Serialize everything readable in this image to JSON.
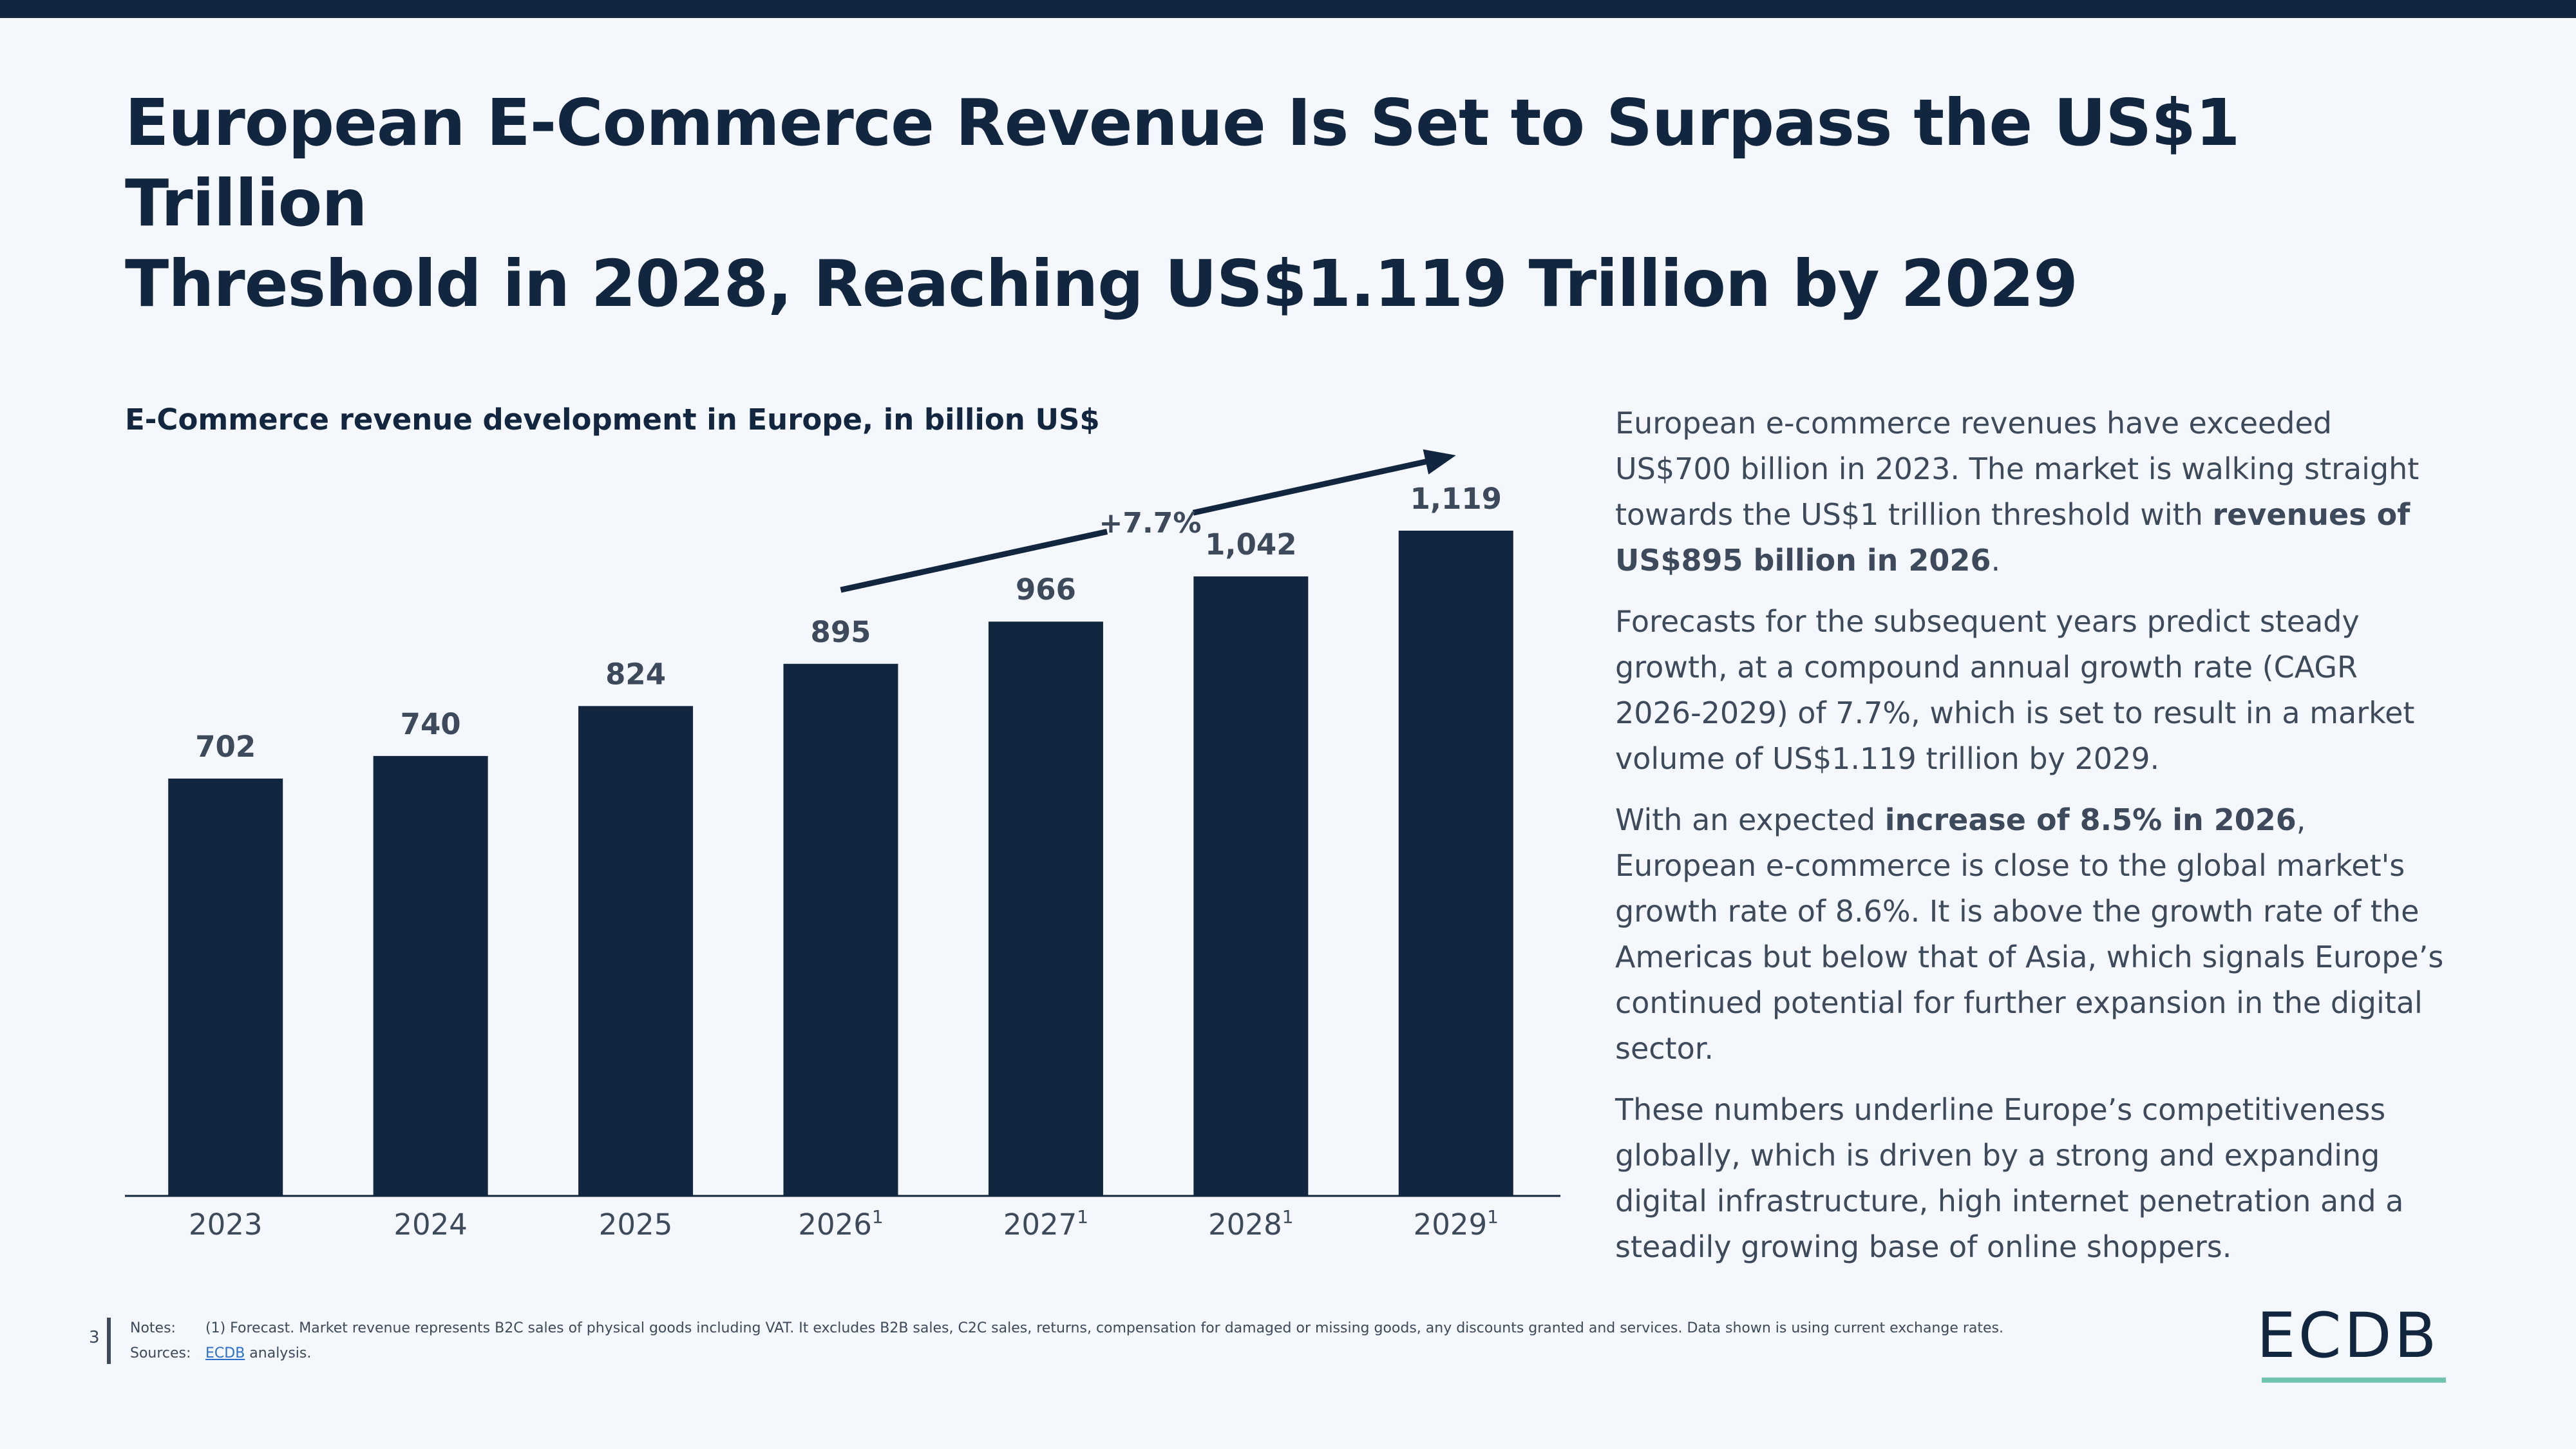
{
  "title_lines": [
    "European E-Commerce Revenue Is Set to Surpass the US$1 Trillion",
    "Threshold in 2028, Reaching US$1.119 Trillion by 2029"
  ],
  "chart_data": {
    "type": "bar",
    "title": "E-Commerce revenue development in Europe, in billion US$",
    "categories": [
      "2023",
      "2024",
      "2025",
      "2026",
      "2027",
      "2028",
      "2029"
    ],
    "category_superscripts": [
      "",
      "",
      "",
      "1",
      "1",
      "1",
      "1"
    ],
    "values": [
      702,
      740,
      824,
      895,
      966,
      1042,
      1119
    ],
    "value_labels": [
      "702",
      "740",
      "824",
      "895",
      "966",
      "1,042",
      "1,119"
    ],
    "ylim": [
      0,
      1119
    ],
    "annotation": {
      "text": "+7.7%",
      "from": "2026",
      "to": "2029"
    },
    "bar_color": "#12263f",
    "grid": false
  },
  "body": [
    {
      "parts": [
        {
          "t": "European e-commerce revenues have exceeded US$700 billion in 2023. The market is walking straight towards the US$1 trillion threshold with "
        },
        {
          "t": "revenues of US$895 billion in 2026",
          "b": true
        },
        {
          "t": "."
        }
      ]
    },
    {
      "parts": [
        {
          "t": "Forecasts for the subsequent years predict steady growth, at a compound annual growth rate (CAGR 2026-2029) of 7.7%, which is set to result in a market volume of US$1.119 trillion by 2029."
        }
      ]
    },
    {
      "parts": [
        {
          "t": "With an expected "
        },
        {
          "t": "increase of 8.5% in 2026",
          "b": true
        },
        {
          "t": ", European e-commerce is close to the global market's growth rate of 8.6%. It is above the growth rate of the Americas but below that of Asia, which signals Europe’s continued potential for further expansion in the digital sector."
        }
      ]
    },
    {
      "parts": [
        {
          "t": "These numbers underline Europe’s competitiveness globally, which is driven by a strong and expanding digital infrastructure, high internet penetration and a steadily growing base of online shoppers."
        }
      ]
    }
  ],
  "footer": {
    "page": "3",
    "notes_label": "Notes:",
    "notes_text": "(1) Forecast. Market revenue represents B2C sales of physical goods including VAT. It excludes B2B sales, C2C sales, returns, compensation for damaged or missing goods, any discounts granted and services. Data shown is using current exchange rates.",
    "sources_label": "Sources:",
    "sources_link": "ECDB",
    "sources_text": " analysis."
  },
  "logo": "ECDB",
  "colors": {
    "navy": "#12263f",
    "accent": "#6fc3b0",
    "text": "#3d4a5c"
  }
}
